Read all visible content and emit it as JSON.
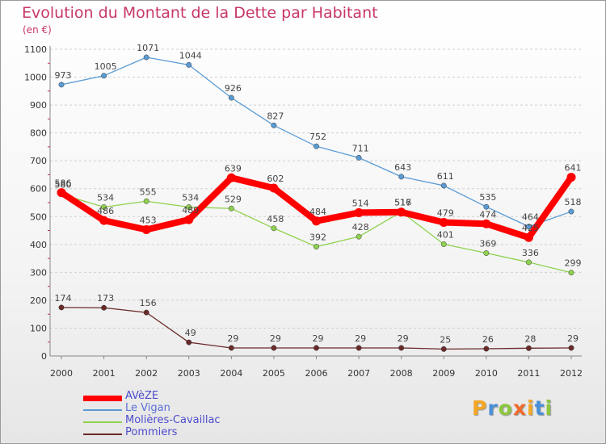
{
  "chart_data": {
    "type": "line",
    "title": "Evolution du Montant de la Dette par Habitant",
    "subtitle": "(en €)",
    "x": [
      "2000",
      "2001",
      "2002",
      "2003",
      "2004",
      "2005",
      "2006",
      "2007",
      "2008",
      "2009",
      "2010",
      "2011",
      "2012"
    ],
    "yticks": [
      "0",
      "100",
      "200",
      "300",
      "400",
      "500",
      "600",
      "700",
      "800",
      "900",
      "1000",
      "1100"
    ],
    "ylim": [
      0,
      1100
    ],
    "grid": "horizontal dashed",
    "legend": "bottom-left",
    "series": [
      {
        "name": "AVèZE",
        "color": "#ff0000",
        "values": [
          586,
          486,
          453,
          489,
          639,
          602,
          484,
          514,
          516,
          479,
          474,
          425,
          641
        ]
      },
      {
        "name": "Le Vigan",
        "color": "#5a9bd4",
        "values": [
          973,
          1005,
          1071,
          1044,
          926,
          827,
          752,
          711,
          643,
          611,
          535,
          464,
          518
        ]
      },
      {
        "name": "Molières-Cavaillac",
        "color": "#8fd14f",
        "values": [
          580,
          534,
          555,
          534,
          529,
          458,
          392,
          428,
          517,
          401,
          369,
          336,
          299
        ]
      },
      {
        "name": "Pommiers",
        "color": "#6b2a2a",
        "values": [
          174,
          173,
          156,
          49,
          29,
          29,
          29,
          29,
          29,
          25,
          26,
          28,
          29
        ]
      }
    ]
  },
  "logo": {
    "letters": [
      "P",
      "r",
      "o",
      "x",
      "i",
      "t",
      "i"
    ],
    "colors": [
      "#f5a623",
      "#4a90d9",
      "#8cc63f",
      "#ef6c2c",
      "#f5a623",
      "#4a90d9",
      "#8cc63f"
    ]
  }
}
